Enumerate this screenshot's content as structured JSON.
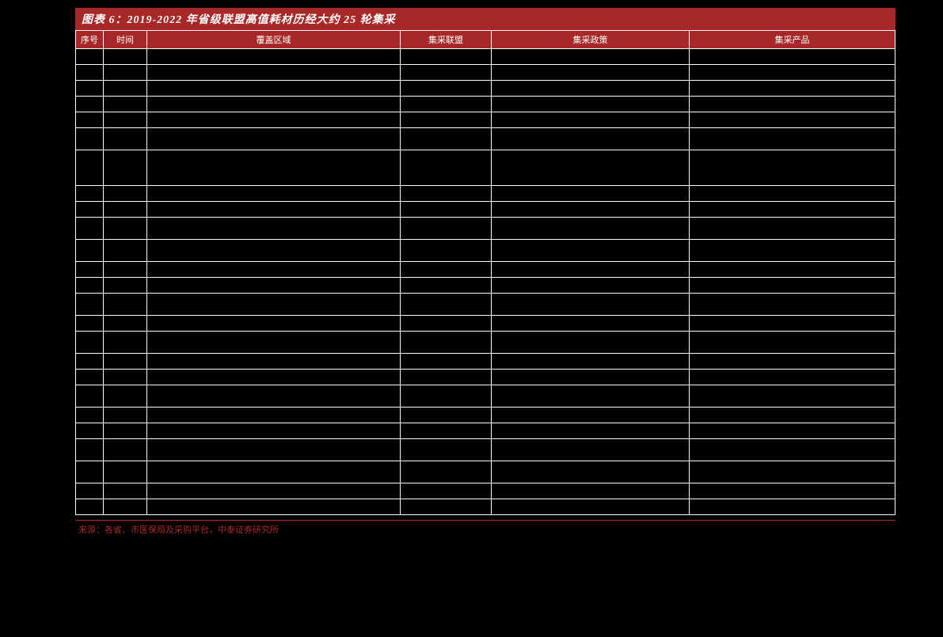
{
  "title": "图表 6：2019-2022 年省级联盟高值耗材历经大约 25 轮集采",
  "headers": {
    "seq": "序号",
    "time": "时间",
    "region": "覆盖区域",
    "alliance": "集采联盟",
    "policy": "集采政策",
    "product": "集采产品"
  },
  "columns": {
    "seq_width": 35,
    "time_width": 55,
    "region_width": 320,
    "alliance_width": 115,
    "policy_width": 250
  },
  "colors": {
    "header_bg": "#a82828",
    "header_text": "#ffffff",
    "cell_bg": "#000000",
    "cell_border": "#ffffff",
    "source_text": "#a82828"
  },
  "rows": [
    {
      "h": "row-small"
    },
    {
      "h": "row-small"
    },
    {
      "h": "row-small"
    },
    {
      "h": "row-small"
    },
    {
      "h": "row-small"
    },
    {
      "h": "row-med"
    },
    {
      "h": "row-tall"
    },
    {
      "h": "row-small"
    },
    {
      "h": "row-small"
    },
    {
      "h": "row-med"
    },
    {
      "h": "row-med"
    },
    {
      "h": "row-small"
    },
    {
      "h": "row-small"
    },
    {
      "h": "row-med"
    },
    {
      "h": "row-small"
    },
    {
      "h": "row-med"
    },
    {
      "h": "row-small"
    },
    {
      "h": "row-small"
    },
    {
      "h": "row-med"
    },
    {
      "h": "row-small"
    },
    {
      "h": "row-small"
    },
    {
      "h": "row-med"
    },
    {
      "h": "row-med"
    },
    {
      "h": "row-small"
    },
    {
      "h": "row-small"
    }
  ],
  "source": "来源：各省、市医保局及采购平台，中泰证券研究所"
}
